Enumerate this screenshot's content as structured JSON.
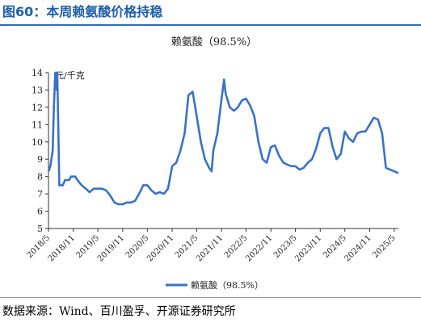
{
  "figure": {
    "title": "图60：本周赖氨酸价格持稳",
    "source": "数据来源：Wind、百川盈孚、开源证券研究所"
  },
  "colors": {
    "series": "#3a72c4",
    "accent": "#1f5fa8",
    "axis": "#333333"
  },
  "chart_data": {
    "type": "line",
    "title": "赖氨酸（98.5%）",
    "unit_label": "元/千克",
    "xlabel": "",
    "ylabel": "",
    "ylim": [
      5,
      14
    ],
    "yticks": [
      5,
      6,
      7,
      8,
      9,
      10,
      11,
      12,
      13,
      14
    ],
    "xlim": [
      "2018-05",
      "2025-06"
    ],
    "xticks": [
      "2018/5",
      "2018/11",
      "2019/5",
      "2019/11",
      "2020/5",
      "2020/11",
      "2021/5",
      "2021/11",
      "2022/5",
      "2022/11",
      "2023/5",
      "2023/11",
      "2024/5",
      "2024/11",
      "2025/5"
    ],
    "grid": false,
    "legend": "bottom-center",
    "series": [
      {
        "name": "赖氨酸（98.5%）",
        "points": [
          [
            "2018-05-01",
            8.3
          ],
          [
            "2018-05-15",
            8.6
          ],
          [
            "2018-06-01",
            9.5
          ],
          [
            "2018-06-10",
            12.0
          ],
          [
            "2018-06-20",
            14.0
          ],
          [
            "2018-06-25",
            14.0
          ],
          [
            "2018-07-01",
            13.0
          ],
          [
            "2018-07-05",
            14.0
          ],
          [
            "2018-07-10",
            12.0
          ],
          [
            "2018-07-20",
            7.5
          ],
          [
            "2018-08-15",
            7.5
          ],
          [
            "2018-09-01",
            7.8
          ],
          [
            "2018-10-01",
            7.8
          ],
          [
            "2018-10-15",
            8.0
          ],
          [
            "2018-11-15",
            8.0
          ],
          [
            "2018-12-01",
            7.8
          ],
          [
            "2019-01-01",
            7.5
          ],
          [
            "2019-02-01",
            7.3
          ],
          [
            "2019-03-01",
            7.1
          ],
          [
            "2019-04-01",
            7.3
          ],
          [
            "2019-05-01",
            7.3
          ],
          [
            "2019-06-01",
            7.3
          ],
          [
            "2019-07-01",
            7.2
          ],
          [
            "2019-08-01",
            6.9
          ],
          [
            "2019-09-01",
            6.5
          ],
          [
            "2019-10-01",
            6.4
          ],
          [
            "2019-11-01",
            6.4
          ],
          [
            "2019-12-01",
            6.5
          ],
          [
            "2020-01-01",
            6.5
          ],
          [
            "2020-02-01",
            6.6
          ],
          [
            "2020-03-01",
            7.0
          ],
          [
            "2020-04-01",
            7.5
          ],
          [
            "2020-05-01",
            7.5
          ],
          [
            "2020-06-01",
            7.2
          ],
          [
            "2020-07-01",
            7.0
          ],
          [
            "2020-08-01",
            7.1
          ],
          [
            "2020-09-01",
            7.0
          ],
          [
            "2020-10-01",
            7.3
          ],
          [
            "2020-11-01",
            8.6
          ],
          [
            "2020-12-01",
            8.8
          ],
          [
            "2021-01-01",
            9.5
          ],
          [
            "2021-02-01",
            10.5
          ],
          [
            "2021-03-01",
            12.7
          ],
          [
            "2021-04-01",
            12.9
          ],
          [
            "2021-05-01",
            11.5
          ],
          [
            "2021-06-01",
            10.0
          ],
          [
            "2021-07-01",
            9.0
          ],
          [
            "2021-08-01",
            8.5
          ],
          [
            "2021-08-20",
            8.3
          ],
          [
            "2021-09-01",
            9.5
          ],
          [
            "2021-10-01",
            10.5
          ],
          [
            "2021-11-01",
            12.5
          ],
          [
            "2021-11-20",
            13.6
          ],
          [
            "2021-12-01",
            12.8
          ],
          [
            "2022-01-01",
            12.0
          ],
          [
            "2022-02-01",
            11.8
          ],
          [
            "2022-03-01",
            12.0
          ],
          [
            "2022-04-01",
            12.4
          ],
          [
            "2022-05-01",
            12.5
          ],
          [
            "2022-06-01",
            12.1
          ],
          [
            "2022-07-01",
            11.5
          ],
          [
            "2022-08-01",
            10.0
          ],
          [
            "2022-09-01",
            9.0
          ],
          [
            "2022-10-01",
            8.8
          ],
          [
            "2022-11-01",
            9.7
          ],
          [
            "2022-12-01",
            9.8
          ],
          [
            "2023-01-01",
            9.2
          ],
          [
            "2023-02-01",
            8.8
          ],
          [
            "2023-03-01",
            8.7
          ],
          [
            "2023-04-01",
            8.6
          ],
          [
            "2023-05-01",
            8.6
          ],
          [
            "2023-06-01",
            8.4
          ],
          [
            "2023-07-01",
            8.5
          ],
          [
            "2023-08-01",
            8.8
          ],
          [
            "2023-09-01",
            9.0
          ],
          [
            "2023-10-01",
            9.6
          ],
          [
            "2023-11-01",
            10.5
          ],
          [
            "2023-12-01",
            10.8
          ],
          [
            "2024-01-01",
            10.8
          ],
          [
            "2024-02-01",
            9.7
          ],
          [
            "2024-03-01",
            9.0
          ],
          [
            "2024-04-01",
            9.3
          ],
          [
            "2024-05-01",
            10.6
          ],
          [
            "2024-06-01",
            10.2
          ],
          [
            "2024-07-01",
            10.0
          ],
          [
            "2024-08-01",
            10.5
          ],
          [
            "2024-09-01",
            10.6
          ],
          [
            "2024-10-01",
            10.6
          ],
          [
            "2024-11-01",
            11.0
          ],
          [
            "2024-12-01",
            11.4
          ],
          [
            "2025-01-01",
            11.3
          ],
          [
            "2025-02-01",
            10.5
          ],
          [
            "2025-03-01",
            8.5
          ],
          [
            "2025-04-01",
            8.4
          ],
          [
            "2025-05-01",
            8.3
          ],
          [
            "2025-06-01",
            8.2
          ]
        ]
      }
    ]
  }
}
